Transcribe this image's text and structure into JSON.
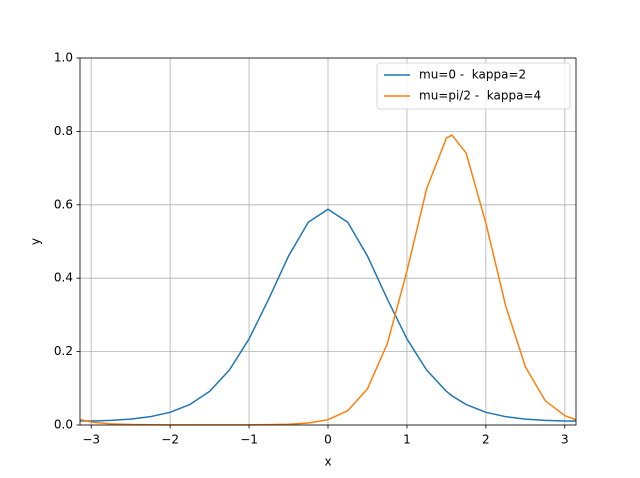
{
  "chart_data": {
    "type": "line",
    "x_label": "x",
    "y_label": "y",
    "x": [
      -3.14,
      -3,
      -2.75,
      -2.5,
      -2.25,
      -2,
      -1.75,
      -1.5,
      -1.25,
      -1,
      -0.75,
      -0.5,
      -0.25,
      0,
      0.25,
      0.5,
      0.75,
      1,
      1.25,
      1.5,
      1.57,
      1.75,
      2,
      2.25,
      2.5,
      2.75,
      3,
      3.14
    ],
    "series": [
      {
        "name": "mu=0 -  kappa=2",
        "color": "#1f77b4",
        "values": [
          0.0108,
          0.011,
          0.0125,
          0.016,
          0.0227,
          0.0346,
          0.0557,
          0.0917,
          0.1495,
          0.2345,
          0.3438,
          0.4603,
          0.5526,
          0.588,
          0.5526,
          0.4603,
          0.3438,
          0.2345,
          0.1495,
          0.0917,
          0.0797,
          0.0557,
          0.0346,
          0.0227,
          0.016,
          0.0125,
          0.011,
          0.0108
        ]
      },
      {
        "name": "mu=pi/2 -  kappa=4",
        "color": "#ff7f0e",
        "values": [
          0.0146,
          0.0082,
          0.0031,
          0.0013,
          0.0006,
          0.0004,
          0.0003,
          0.0003,
          0.0003,
          0.0005,
          0.0009,
          0.0021,
          0.0054,
          0.0145,
          0.0389,
          0.0985,
          0.221,
          0.419,
          0.644,
          0.782,
          0.79,
          0.741,
          0.55,
          0.325,
          0.159,
          0.0666,
          0.0254,
          0.0146
        ]
      }
    ],
    "xlim": [
      -3.1416,
      3.1416
    ],
    "xticks": [
      {
        "value": -3,
        "label": "−3"
      },
      {
        "value": -2,
        "label": "−2"
      },
      {
        "value": -1,
        "label": "−1"
      },
      0,
      1,
      2,
      3
    ],
    "ylim": [
      0,
      1
    ],
    "yticks": [
      {
        "value": 0,
        "label": "0.0"
      },
      0.2,
      0.4,
      0.6,
      0.8,
      {
        "value": 1,
        "label": "1.0"
      }
    ],
    "grid": true,
    "legend": "upper right"
  }
}
